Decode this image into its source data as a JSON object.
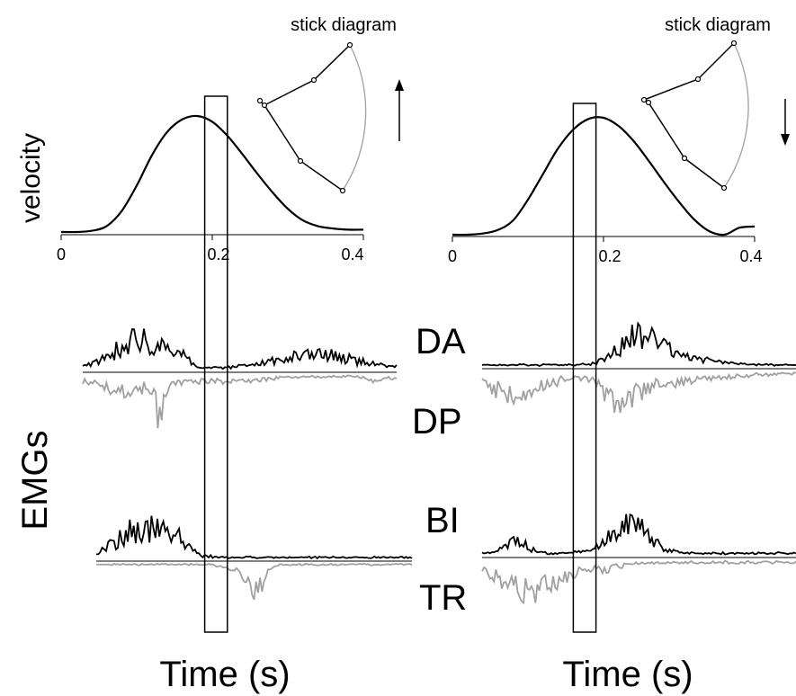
{
  "labels": {
    "velocity": "velocity",
    "emgs": "EMGs",
    "stick": "stick diagram",
    "time": "Time (s)",
    "muscles": {
      "da": "DA",
      "dp": "DP",
      "bi": "BI",
      "tr": "TR"
    }
  },
  "colors": {
    "agonist": "#000000",
    "antagonist": "#a0a0a0"
  },
  "chart_data": [
    {
      "type": "line",
      "panel": "left",
      "movement_arrow": "up-arrow",
      "xlim": [
        0,
        0.4
      ],
      "xticks": [
        "0",
        "0.2",
        "0.4"
      ],
      "window": [
        0.19,
        0.22
      ],
      "velocity": {
        "x": [
          0,
          0.02,
          0.04,
          0.06,
          0.08,
          0.1,
          0.12,
          0.14,
          0.16,
          0.18,
          0.2,
          0.22,
          0.24,
          0.26,
          0.28,
          0.3,
          0.32,
          0.34,
          0.36,
          0.38,
          0.4
        ],
        "y": [
          0,
          0,
          0.01,
          0.05,
          0.18,
          0.4,
          0.66,
          0.86,
          0.97,
          1.0,
          0.95,
          0.83,
          0.67,
          0.5,
          0.34,
          0.2,
          0.1,
          0.05,
          0.03,
          0.02,
          0.02
        ]
      }
    },
    {
      "type": "line",
      "panel": "right",
      "movement_arrow": "down-arrow",
      "xlim": [
        0,
        0.4
      ],
      "xticks": [
        "0",
        "0.2",
        "0.4"
      ],
      "window": [
        0.16,
        0.19
      ],
      "velocity": {
        "x": [
          0,
          0.02,
          0.04,
          0.06,
          0.08,
          0.1,
          0.12,
          0.14,
          0.16,
          0.18,
          0.2,
          0.22,
          0.24,
          0.26,
          0.28,
          0.3,
          0.32,
          0.34,
          0.36,
          0.38,
          0.4
        ],
        "y": [
          0,
          0,
          0.01,
          0.04,
          0.12,
          0.3,
          0.52,
          0.74,
          0.9,
          0.99,
          1.0,
          0.93,
          0.8,
          0.63,
          0.45,
          0.28,
          0.13,
          0.03,
          0,
          0.06,
          0.07
        ]
      }
    }
  ]
}
